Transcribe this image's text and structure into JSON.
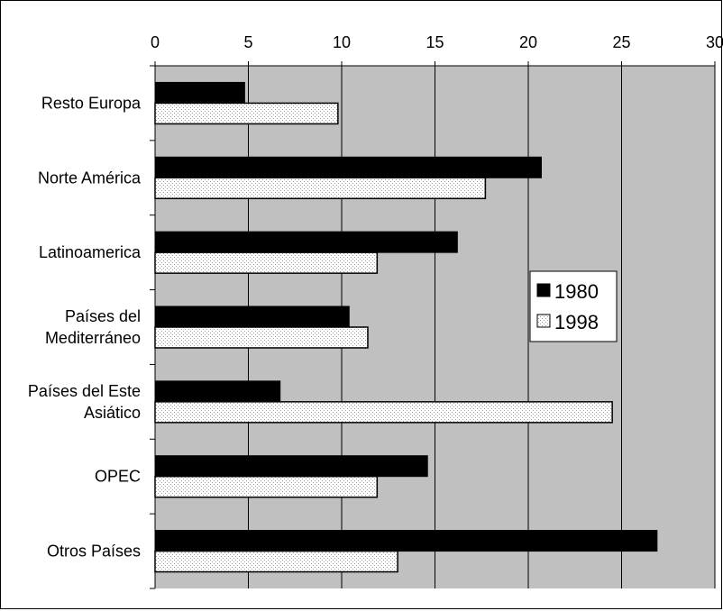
{
  "chart_data": {
    "type": "bar",
    "orientation": "horizontal",
    "categories": [
      [
        "Resto Europa"
      ],
      [
        "Norte América"
      ],
      [
        "Latinoamerica"
      ],
      [
        "Países del",
        "Mediterráneo"
      ],
      [
        "Países del Este",
        "Asiático"
      ],
      [
        "OPEC"
      ],
      [
        "Otros Países"
      ]
    ],
    "series": [
      {
        "name": "1980",
        "values": [
          4.8,
          20.7,
          16.2,
          10.4,
          6.7,
          14.6,
          26.9
        ]
      },
      {
        "name": "1998",
        "values": [
          9.8,
          17.7,
          11.9,
          11.4,
          24.5,
          11.9,
          13.0
        ]
      }
    ],
    "xlim": [
      0,
      30
    ],
    "xticks": [
      "0",
      "5",
      "10",
      "15",
      "20",
      "25",
      "30"
    ],
    "x_axis_position": "top",
    "grid": true,
    "legend_position": "right-center",
    "colors": {
      "plot_background": "#c0c0c0",
      "series_1980": "#000000",
      "series_1998": "#ffffff",
      "series_1998_dots": "#9a9a9a",
      "gridlines": "#000000"
    }
  }
}
